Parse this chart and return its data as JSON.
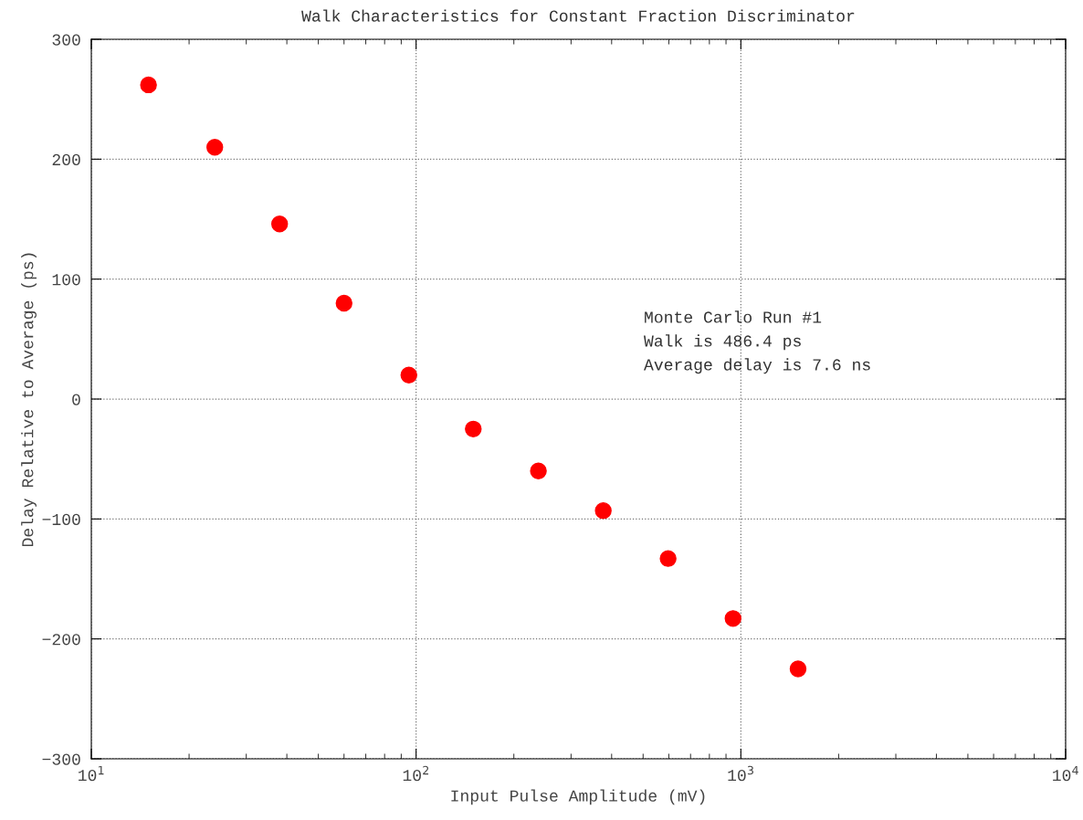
{
  "chart_data": {
    "type": "scatter",
    "title": "Walk Characteristics for Constant Fraction Discriminator",
    "xlabel": "Input Pulse Amplitude (mV)",
    "ylabel": "Delay Relative to Average (ps)",
    "x": [
      15,
      24,
      38,
      60,
      95,
      150,
      238,
      377,
      597,
      946,
      1500
    ],
    "series": [
      {
        "color": "#ff0000",
        "values": [
          262,
          210,
          146,
          80,
          20,
          -25,
          -60,
          -93,
          -133,
          -183,
          -225
        ]
      }
    ],
    "log": "x",
    "xlim": [
      10,
      10000
    ],
    "xticks": [
      {
        "value": 10,
        "label": "10$^{1}$"
      },
      {
        "value": 100,
        "label": "10$^{2}$"
      },
      {
        "value": 1000,
        "label": "10$^{3}$"
      },
      {
        "value": 10000,
        "label": "10$^{4}$"
      }
    ],
    "ylim": [
      -300,
      300
    ],
    "yticks": [
      -300,
      -200,
      -100,
      0,
      100,
      200,
      300
    ],
    "grid": true,
    "marker": "circle",
    "legend": false,
    "annotations": [
      "Monte Carlo Run #1",
      "Walk is 486.4 ps",
      "Average delay is 7.6 ns"
    ]
  }
}
